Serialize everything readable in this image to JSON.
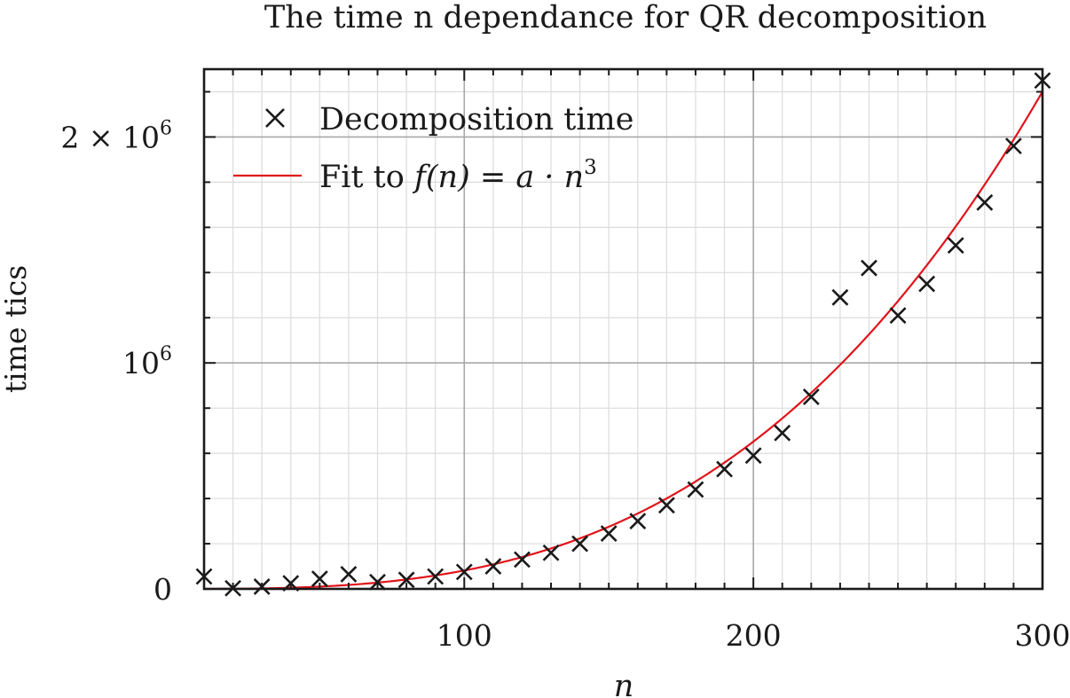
{
  "chart_data": {
    "type": "scatter",
    "title": "The time n dependance for QR decomposition",
    "xlabel": "n",
    "ylabel": "time tics",
    "xlim": [
      10,
      300
    ],
    "ylim": [
      0,
      2300000
    ],
    "x_ticks": [
      {
        "value": 100,
        "label": "100"
      },
      {
        "value": 200,
        "label": "200"
      },
      {
        "value": 300,
        "label": "300"
      }
    ],
    "y_ticks": [
      {
        "value": 0,
        "base": "0",
        "exp": ""
      },
      {
        "value": 1000000,
        "base": "10",
        "exp": "6"
      },
      {
        "value": 2000000,
        "base": "2 × 10",
        "exp": "6"
      }
    ],
    "x_minor_step": 10,
    "y_minor_step": 200000,
    "grid": true,
    "legend_position": "top-left",
    "series": [
      {
        "name": "Decomposition time",
        "kind": "points",
        "marker": "x",
        "color": "#1a1a1a",
        "x": [
          10,
          20,
          30,
          40,
          50,
          60,
          70,
          80,
          90,
          100,
          110,
          120,
          130,
          140,
          150,
          160,
          170,
          180,
          190,
          200,
          210,
          220,
          230,
          240,
          250,
          260,
          270,
          280,
          290,
          300
        ],
        "y": [
          55000,
          3000,
          10000,
          25000,
          45000,
          65000,
          30000,
          40000,
          55000,
          75000,
          100000,
          130000,
          160000,
          200000,
          245000,
          300000,
          370000,
          440000,
          530000,
          590000,
          690000,
          850000,
          1290000,
          1420000,
          1210000,
          1350000,
          1520000,
          1710000,
          1960000,
          2250000
        ]
      },
      {
        "name": "Fit to ",
        "formula": "f(n) = a · n",
        "formula_exp": "3",
        "kind": "line",
        "color": "#e1141b",
        "a": 0.0815,
        "power": 3
      }
    ]
  }
}
